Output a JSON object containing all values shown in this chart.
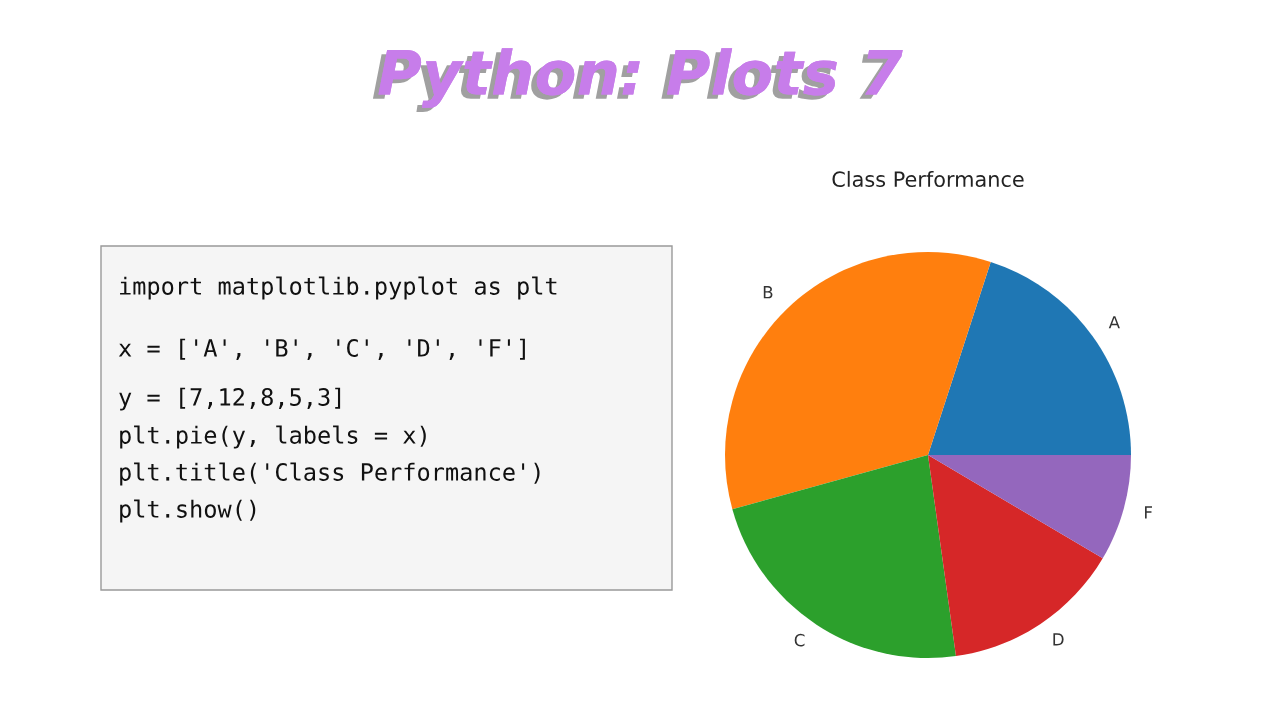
{
  "chart_data": {
    "type": "pie",
    "title": "Class Performance",
    "categories": [
      "A",
      "B",
      "C",
      "D",
      "F"
    ],
    "values": [
      20,
      34.3,
      22.9,
      14.3,
      8.5
    ],
    "colors": [
      "#1f77b4",
      "#ff7f0e",
      "#2ca02c",
      "#d62728",
      "#9467bd"
    ],
    "annotations": [
      "Python: Plots 7",
      "import matplotlib.pyplot as plt",
      "x = ['A', 'B', 'C', 'D', 'F']",
      "y = [7,12,8,5,3]",
      "plt.pie(y, labels = x)",
      "plt.title('Class Performance')",
      "plt.show()"
    ]
  }
}
